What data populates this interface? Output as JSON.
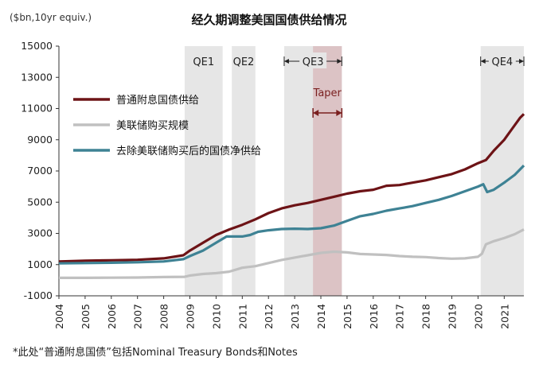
{
  "chart_data": {
    "type": "line",
    "title": "经久期调整美国国债供给情况",
    "ylabel": "($bn,10yr equiv.)",
    "ylim": [
      -1000,
      15000
    ],
    "yticks": [
      -1000,
      1000,
      3000,
      5000,
      7000,
      9000,
      11000,
      13000,
      15000
    ],
    "xlim": [
      2004,
      2021.75
    ],
    "xticks": [
      2004,
      2005,
      2006,
      2007,
      2008,
      2009,
      2010,
      2011,
      2012,
      2013,
      2014,
      2015,
      2016,
      2017,
      2018,
      2019,
      2020,
      2021
    ],
    "shaded_periods": [
      {
        "label": "QE1",
        "start": 2008.8,
        "end": 2010.25
      },
      {
        "label": "QE2",
        "start": 2010.6,
        "end": 2011.5
      },
      {
        "label": "QE3",
        "start": 2012.6,
        "end": 2014.8
      },
      {
        "label": "QE4",
        "start": 2020.1,
        "end": 2021.75
      }
    ],
    "taper": {
      "label": "Taper",
      "start": 2013.7,
      "end": 2014.8
    },
    "series": [
      {
        "name": "普通附息国债供给",
        "color": "#6d1316",
        "points": [
          [
            2004,
            1200
          ],
          [
            2005,
            1250
          ],
          [
            2006,
            1280
          ],
          [
            2007,
            1310
          ],
          [
            2008,
            1400
          ],
          [
            2008.75,
            1600
          ],
          [
            2009,
            1900
          ],
          [
            2009.5,
            2400
          ],
          [
            2010,
            2900
          ],
          [
            2010.5,
            3250
          ],
          [
            2011,
            3550
          ],
          [
            2011.5,
            3900
          ],
          [
            2012,
            4300
          ],
          [
            2012.5,
            4600
          ],
          [
            2013,
            4800
          ],
          [
            2013.5,
            4950
          ],
          [
            2014,
            5150
          ],
          [
            2014.5,
            5350
          ],
          [
            2015,
            5550
          ],
          [
            2015.5,
            5700
          ],
          [
            2016,
            5800
          ],
          [
            2016.5,
            6050
          ],
          [
            2017,
            6100
          ],
          [
            2017.5,
            6250
          ],
          [
            2018,
            6400
          ],
          [
            2018.5,
            6600
          ],
          [
            2019,
            6800
          ],
          [
            2019.5,
            7100
          ],
          [
            2020,
            7500
          ],
          [
            2020.3,
            7700
          ],
          [
            2020.6,
            8300
          ],
          [
            2021,
            9000
          ],
          [
            2021.3,
            9700
          ],
          [
            2021.6,
            10400
          ],
          [
            2021.75,
            10650
          ]
        ]
      },
      {
        "name": "美联储购买规模",
        "color": "#c0c0c0",
        "points": [
          [
            2004,
            150
          ],
          [
            2005,
            150
          ],
          [
            2006,
            160
          ],
          [
            2007,
            170
          ],
          [
            2008,
            200
          ],
          [
            2008.8,
            220
          ],
          [
            2009,
            300
          ],
          [
            2009.5,
            400
          ],
          [
            2010,
            450
          ],
          [
            2010.5,
            550
          ],
          [
            2011,
            800
          ],
          [
            2011.5,
            900
          ],
          [
            2012,
            1100
          ],
          [
            2012.5,
            1300
          ],
          [
            2013,
            1450
          ],
          [
            2013.5,
            1600
          ],
          [
            2014,
            1750
          ],
          [
            2014.5,
            1830
          ],
          [
            2015,
            1780
          ],
          [
            2015.5,
            1680
          ],
          [
            2016,
            1650
          ],
          [
            2016.5,
            1620
          ],
          [
            2017,
            1550
          ],
          [
            2017.5,
            1500
          ],
          [
            2018,
            1480
          ],
          [
            2018.5,
            1420
          ],
          [
            2019,
            1380
          ],
          [
            2019.5,
            1400
          ],
          [
            2020,
            1500
          ],
          [
            2020.15,
            1700
          ],
          [
            2020.3,
            2300
          ],
          [
            2020.6,
            2500
          ],
          [
            2021,
            2700
          ],
          [
            2021.4,
            2950
          ],
          [
            2021.75,
            3250
          ]
        ]
      },
      {
        "name": "去除美联储购买后的国债净供给",
        "color": "#3e8294",
        "points": [
          [
            2004,
            1080
          ],
          [
            2005,
            1100
          ],
          [
            2006,
            1120
          ],
          [
            2007,
            1150
          ],
          [
            2008,
            1200
          ],
          [
            2008.75,
            1350
          ],
          [
            2009,
            1550
          ],
          [
            2009.5,
            1900
          ],
          [
            2010,
            2400
          ],
          [
            2010.4,
            2800
          ],
          [
            2010.7,
            2800
          ],
          [
            2011,
            2800
          ],
          [
            2011.3,
            2900
          ],
          [
            2011.6,
            3100
          ],
          [
            2012,
            3200
          ],
          [
            2012.5,
            3280
          ],
          [
            2013,
            3300
          ],
          [
            2013.5,
            3280
          ],
          [
            2014,
            3330
          ],
          [
            2014.5,
            3500
          ],
          [
            2015,
            3800
          ],
          [
            2015.5,
            4100
          ],
          [
            2016,
            4250
          ],
          [
            2016.5,
            4450
          ],
          [
            2017,
            4600
          ],
          [
            2017.5,
            4750
          ],
          [
            2018,
            4950
          ],
          [
            2018.5,
            5150
          ],
          [
            2019,
            5400
          ],
          [
            2019.5,
            5700
          ],
          [
            2020,
            6000
          ],
          [
            2020.2,
            6150
          ],
          [
            2020.35,
            5650
          ],
          [
            2020.6,
            5800
          ],
          [
            2021,
            6250
          ],
          [
            2021.4,
            6750
          ],
          [
            2021.75,
            7350
          ]
        ]
      }
    ],
    "footnote": "*此处“普通附息国债”包括Nominal Treasury Bonds和Notes"
  }
}
